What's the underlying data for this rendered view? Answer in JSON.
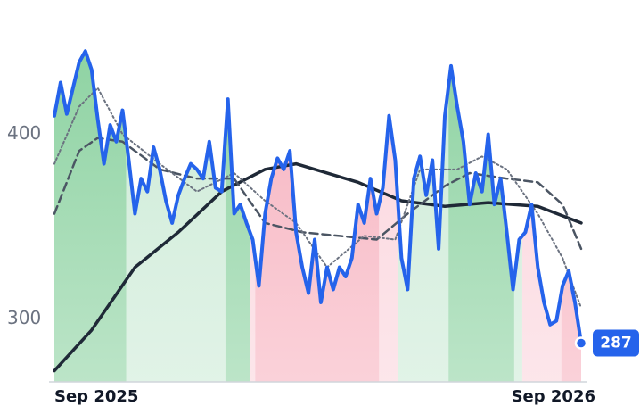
{
  "chart_data": {
    "type": "line",
    "x": [
      0,
      1,
      2,
      3,
      4,
      5,
      6,
      7,
      8,
      9,
      10,
      11,
      12,
      13,
      14,
      15,
      16,
      17,
      18,
      19,
      20,
      21,
      22,
      23,
      24,
      25,
      26,
      27,
      28,
      29,
      30,
      31,
      32,
      33,
      34,
      35,
      36,
      37,
      38,
      39,
      40,
      41,
      42,
      43,
      44,
      45,
      46,
      47,
      48,
      49,
      50,
      51,
      52,
      53,
      54,
      55,
      56,
      57,
      58,
      59,
      60,
      61,
      62,
      63,
      64,
      65,
      66,
      67,
      68,
      69,
      70,
      71,
      72,
      73,
      74,
      75,
      76,
      77,
      78,
      79,
      80,
      81,
      82,
      83,
      84,
      85
    ],
    "xlim": [
      0,
      85
    ],
    "xticks": [
      {
        "value": 0,
        "label": "Sep 2025"
      },
      {
        "value": 85,
        "label": "Sep 2026"
      }
    ],
    "ylim": [
      266,
      463
    ],
    "yticks": [
      300,
      400
    ],
    "series": [
      {
        "color": "#2563eb",
        "style": "solid",
        "width": 4,
        "values": [
          410,
          428,
          411,
          425,
          439,
          445,
          435,
          408,
          384,
          405,
          396,
          413,
          386,
          357,
          376,
          369,
          393,
          381,
          364,
          352,
          367,
          376,
          384,
          381,
          376,
          396,
          371,
          369,
          419,
          357,
          362,
          352,
          343,
          318,
          357,
          376,
          387,
          381,
          391,
          347,
          328,
          314,
          343,
          309,
          328,
          316,
          328,
          323,
          333,
          362,
          352,
          376,
          357,
          371,
          410,
          386,
          333,
          316,
          376,
          388,
          367,
          386,
          338,
          410,
          437,
          415,
          396,
          362,
          379,
          369,
          400,
          362,
          376,
          347,
          316,
          343,
          347,
          362,
          328,
          309,
          297,
          299,
          318,
          326,
          309,
          287
        ]
      },
      {
        "color": "#1f2937",
        "style": "solid",
        "width": 3.5,
        "x": [
          0,
          6,
          13,
          20,
          27,
          34,
          39,
          49,
          56,
          63,
          70,
          78,
          85
        ],
        "values": [
          272,
          294,
          328,
          347,
          369,
          381,
          384,
          374,
          364,
          361,
          363,
          361,
          352
        ]
      },
      {
        "color": "#4b5563",
        "style": "dashed",
        "width": 2.5,
        "x": [
          0,
          4,
          7,
          11,
          17,
          23,
          29,
          34,
          40,
          46,
          52,
          57,
          63,
          67,
          73,
          78,
          82,
          85
        ],
        "values": [
          357,
          391,
          398,
          396,
          381,
          376,
          376,
          352,
          347,
          345,
          343,
          357,
          372,
          379,
          376,
          374,
          362,
          338
        ]
      },
      {
        "color": "#6b7280",
        "style": "dotted",
        "width": 2,
        "x": [
          0,
          4,
          7,
          11,
          17,
          23,
          29,
          34,
          39,
          44,
          50,
          55,
          59,
          65,
          69,
          73,
          78,
          82,
          85
        ],
        "values": [
          384,
          415,
          425,
          400,
          384,
          369,
          379,
          364,
          352,
          328,
          345,
          343,
          381,
          381,
          388,
          381,
          357,
          333,
          306
        ]
      }
    ],
    "regions": [
      {
        "start": 0,
        "end": 11.6,
        "color": "#8fd3a3"
      },
      {
        "start": 11.6,
        "end": 27.6,
        "color": "#cdebd7"
      },
      {
        "start": 27.6,
        "end": 31.5,
        "color": "#8fd3a3"
      },
      {
        "start": 31.5,
        "end": 32.4,
        "color": "#fbd5dd"
      },
      {
        "start": 32.4,
        "end": 52.4,
        "color": "#f7b3c0"
      },
      {
        "start": 52.4,
        "end": 55.4,
        "color": "#fbd5dd"
      },
      {
        "start": 55.4,
        "end": 63.6,
        "color": "#cdebd7"
      },
      {
        "start": 63.6,
        "end": 74.2,
        "color": "#8fd3a3"
      },
      {
        "start": 74.2,
        "end": 75.5,
        "color": "#cdebd7"
      },
      {
        "start": 75.5,
        "end": 81.8,
        "color": "#fbd5dd"
      },
      {
        "start": 81.8,
        "end": 85,
        "color": "#f7b3c0"
      }
    ]
  }
}
